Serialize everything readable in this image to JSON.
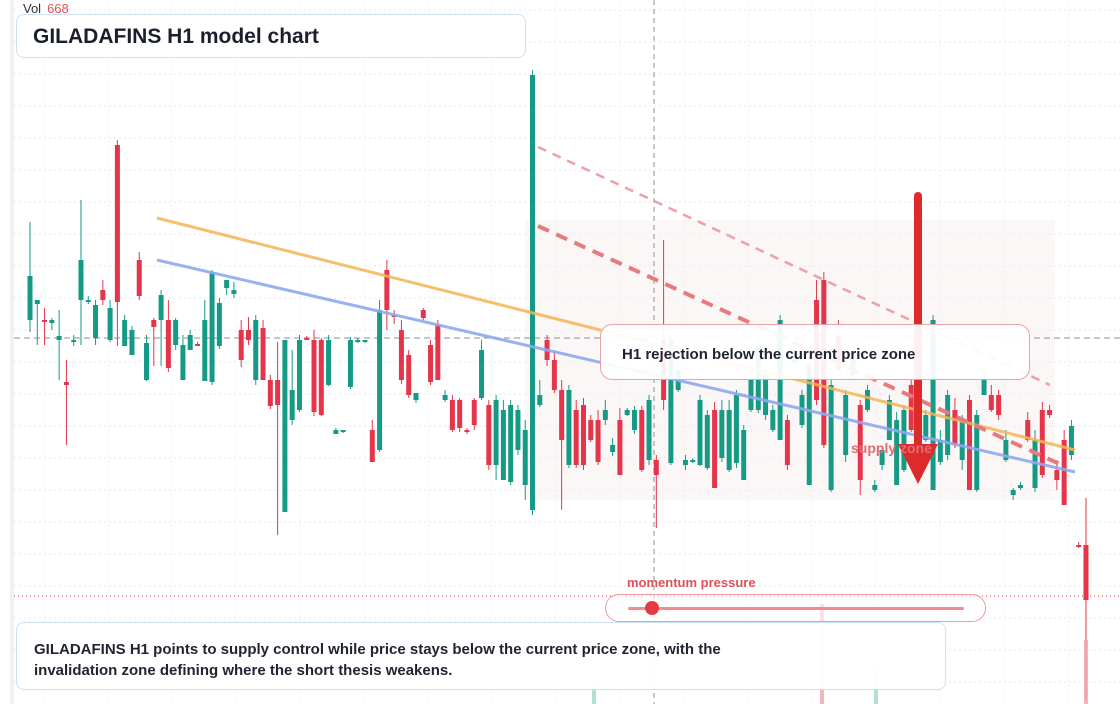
{
  "volume": {
    "label": "Vol",
    "value": "668"
  },
  "title": "GILADAFINS H1 model chart",
  "callout": "H1 rejection below the current price zone",
  "zone_label": "supply zone",
  "momentum": {
    "label": "momentum pressure",
    "value": 0.07
  },
  "summary": "GILADAFINS H1 points to supply control while price stays below the current price zone, with the invalidation zone defining where the short thesis weakens.",
  "colors": {
    "bull": "#159a86",
    "bear": "#e5354a",
    "trend_orange": "#f5b553",
    "trend_blue": "#8fa8f0",
    "dashed_red": "#e77a7f",
    "arrow": "#dd2a2a"
  },
  "chart_data": {
    "type": "candlestick",
    "title": "GILADAFINS H1 model chart",
    "grid": true,
    "annotations": [
      "H1 rejection below the current price zone",
      "supply zone",
      "momentum pressure"
    ],
    "trend": "downward",
    "series": [
      {
        "name": "candles",
        "values": [
          [
            320,
            276,
            332,
            222,
            1
          ],
          [
            300,
            304,
            345,
            301,
            1
          ],
          [
            320,
            320,
            345,
            308,
            0
          ],
          [
            320,
            323,
            330,
            318,
            1
          ],
          [
            340,
            336,
            380,
            310,
            1
          ],
          [
            385,
            382,
            445,
            360,
            0
          ],
          [
            340,
            342,
            346,
            335,
            1
          ],
          [
            300,
            260,
            345,
            200,
            1
          ],
          [
            300,
            302,
            304,
            296,
            1
          ],
          [
            305,
            338,
            345,
            300,
            1
          ],
          [
            300,
            290,
            305,
            280,
            0
          ],
          [
            340,
            308,
            342,
            300,
            1
          ],
          [
            145,
            302,
            346,
            140,
            0
          ],
          [
            320,
            346,
            346,
            315,
            1
          ],
          [
            330,
            355,
            354,
            326,
            1
          ],
          [
            260,
            296,
            300,
            252,
            0
          ],
          [
            380,
            343,
            381,
            335,
            1
          ],
          [
            320,
            327,
            366,
            318,
            0
          ],
          [
            295,
            320,
            366,
            290,
            1
          ],
          [
            320,
            368,
            372,
            300,
            0
          ],
          [
            320,
            345,
            350,
            318,
            1
          ],
          [
            345,
            380,
            380,
            335,
            1
          ],
          [
            350,
            335,
            350,
            330,
            1
          ],
          [
            345,
            344,
            346,
            342,
            0
          ],
          [
            320,
            381,
            381,
            300,
            1
          ],
          [
            272,
            382,
            385,
            270,
            1
          ],
          [
            303,
            346,
            349,
            298,
            1
          ],
          [
            288,
            280,
            295,
            282,
            1
          ],
          [
            290,
            294,
            298,
            282,
            1
          ],
          [
            330,
            360,
            367,
            320,
            0
          ],
          [
            330,
            340,
            345,
            317,
            0
          ],
          [
            320,
            380,
            385,
            315,
            1
          ],
          [
            328,
            380,
            380,
            320,
            0
          ],
          [
            380,
            406,
            409,
            375,
            0
          ],
          [
            405,
            380,
            535,
            342,
            0
          ],
          [
            340,
            512,
            512,
            340,
            1
          ],
          [
            390,
            420,
            425,
            350,
            1
          ],
          [
            340,
            410,
            412,
            335,
            1
          ],
          [
            340,
            338,
            340,
            336,
            0
          ],
          [
            340,
            412,
            416,
            330,
            0
          ],
          [
            340,
            415,
            416,
            338,
            0
          ],
          [
            340,
            385,
            386,
            335,
            1
          ],
          [
            430,
            434,
            432,
            428,
            1
          ],
          [
            430,
            432,
            433,
            430,
            1
          ],
          [
            340,
            387,
            389,
            337,
            1
          ],
          [
            340,
            341,
            343,
            338,
            1
          ],
          [
            340,
            342,
            343,
            340,
            1
          ],
          [
            430,
            462,
            462,
            420,
            0
          ],
          [
            310,
            450,
            452,
            300,
            1
          ],
          [
            270,
            310,
            330,
            260,
            0
          ],
          [
            315,
            315,
            324,
            310,
            0
          ],
          [
            330,
            380,
            384,
            320,
            0
          ],
          [
            355,
            395,
            398,
            350,
            0
          ],
          [
            400,
            393,
            403,
            394,
            1
          ],
          [
            310,
            318,
            320,
            308,
            0
          ],
          [
            345,
            382,
            385,
            340,
            0
          ],
          [
            325,
            380,
            380,
            320,
            0
          ],
          [
            395,
            400,
            402,
            390,
            1
          ],
          [
            400,
            430,
            432,
            395,
            0
          ],
          [
            400,
            428,
            432,
            398,
            0
          ],
          [
            430,
            432,
            434,
            428,
            0
          ],
          [
            400,
            425,
            430,
            398,
            0
          ],
          [
            350,
            398,
            400,
            340,
            1
          ],
          [
            405,
            465,
            470,
            400,
            0
          ],
          [
            400,
            465,
            480,
            395,
            1
          ],
          [
            410,
            480,
            480,
            400,
            1
          ],
          [
            405,
            482,
            485,
            400,
            1
          ],
          [
            410,
            450,
            455,
            405,
            1
          ],
          [
            430,
            485,
            500,
            420,
            1
          ],
          [
            75,
            510,
            515,
            70,
            1
          ],
          [
            395,
            405,
            407,
            380,
            1
          ],
          [
            340,
            360,
            366,
            335,
            0
          ],
          [
            360,
            390,
            393,
            352,
            0
          ],
          [
            390,
            440,
            510,
            380,
            0
          ],
          [
            390,
            465,
            468,
            385,
            1
          ],
          [
            410,
            465,
            468,
            400,
            0
          ],
          [
            405,
            465,
            470,
            398,
            0
          ],
          [
            420,
            440,
            442,
            415,
            0
          ],
          [
            420,
            462,
            465,
            410,
            0
          ],
          [
            410,
            420,
            425,
            400,
            1
          ],
          [
            445,
            452,
            456,
            438,
            1
          ],
          [
            420,
            475,
            475,
            408,
            0
          ],
          [
            410,
            415,
            416,
            408,
            1
          ],
          [
            410,
            430,
            434,
            406,
            1
          ],
          [
            410,
            470,
            472,
            406,
            0
          ],
          [
            400,
            460,
            465,
            395,
            1
          ],
          [
            460,
            475,
            528,
            455,
            0
          ],
          [
            340,
            400,
            410,
            240,
            0
          ],
          [
            340,
            463,
            465,
            335,
            1
          ],
          [
            370,
            390,
            392,
            365,
            1
          ],
          [
            460,
            465,
            470,
            455,
            1
          ],
          [
            460,
            462,
            463,
            458,
            1
          ],
          [
            400,
            465,
            466,
            395,
            1
          ],
          [
            415,
            468,
            470,
            410,
            1
          ],
          [
            410,
            488,
            488,
            402,
            0
          ],
          [
            410,
            458,
            462,
            400,
            1
          ],
          [
            410,
            470,
            472,
            400,
            1
          ],
          [
            395,
            463,
            468,
            390,
            1
          ],
          [
            430,
            480,
            480,
            425,
            1
          ],
          [
            380,
            410,
            412,
            375,
            1
          ],
          [
            345,
            410,
            413,
            340,
            1
          ],
          [
            375,
            415,
            420,
            365,
            1
          ],
          [
            410,
            430,
            432,
            405,
            1
          ],
          [
            320,
            440,
            440,
            315,
            1
          ],
          [
            420,
            465,
            470,
            415,
            0
          ],
          [
            360,
            360,
            365,
            355,
            1
          ],
          [
            395,
            425,
            428,
            390,
            1
          ],
          [
            365,
            485,
            485,
            360,
            1
          ],
          [
            300,
            400,
            405,
            280,
            0
          ],
          [
            280,
            445,
            448,
            272,
            0
          ],
          [
            385,
            490,
            492,
            380,
            1
          ],
          [
            335,
            370,
            372,
            320,
            0
          ],
          [
            395,
            455,
            462,
            390,
            1
          ],
          [
            360,
            375,
            378,
            355,
            1
          ],
          [
            405,
            480,
            495,
            400,
            0
          ],
          [
            390,
            410,
            412,
            385,
            1
          ],
          [
            485,
            490,
            492,
            480,
            1
          ],
          [
            450,
            465,
            470,
            448,
            1
          ],
          [
            400,
            440,
            440,
            395,
            1
          ],
          [
            420,
            485,
            485,
            412,
            1
          ],
          [
            410,
            470,
            472,
            405,
            1
          ],
          [
            385,
            430,
            432,
            380,
            0
          ],
          [
            410,
            470,
            472,
            405,
            1
          ],
          [
            415,
            440,
            442,
            410,
            1
          ],
          [
            320,
            490,
            490,
            315,
            1
          ],
          [
            440,
            462,
            465,
            430,
            1
          ],
          [
            395,
            455,
            460,
            390,
            1
          ],
          [
            410,
            445,
            448,
            398,
            0
          ],
          [
            420,
            460,
            470,
            415,
            1
          ],
          [
            400,
            490,
            490,
            395,
            0
          ],
          [
            415,
            490,
            492,
            410,
            1
          ],
          [
            380,
            395,
            395,
            375,
            1
          ],
          [
            395,
            410,
            412,
            385,
            0
          ],
          [
            395,
            415,
            420,
            390,
            0
          ],
          [
            440,
            460,
            462,
            430,
            1
          ],
          [
            490,
            495,
            500,
            488,
            1
          ],
          [
            485,
            488,
            490,
            482,
            1
          ],
          [
            420,
            440,
            442,
            412,
            0
          ],
          [
            440,
            488,
            492,
            430,
            1
          ],
          [
            410,
            475,
            478,
            402,
            0
          ],
          [
            410,
            415,
            418,
            405,
            0
          ],
          [
            470,
            480,
            490,
            460,
            0
          ],
          [
            440,
            505,
            505,
            430,
            0
          ],
          [
            426,
            455,
            460,
            420,
            1
          ],
          [
            545,
            546,
            548,
            542,
            0
          ],
          [
            545,
            600,
            700,
            498,
            0
          ]
        ]
      }
    ]
  }
}
